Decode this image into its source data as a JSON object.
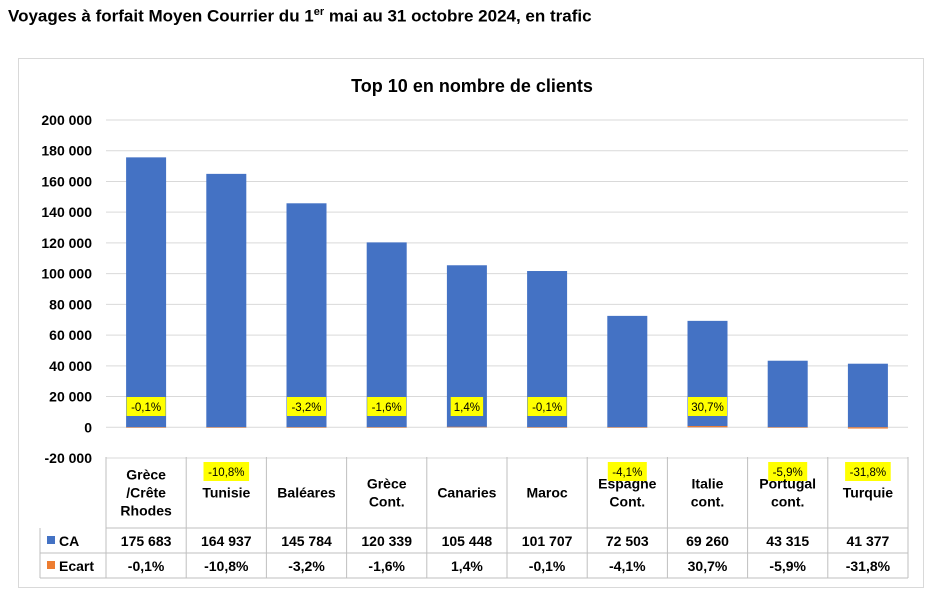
{
  "page": {
    "title_main": "Voyages à forfait Moyen Courrier du 1",
    "title_sup": "er",
    "title_rest": " mai au 31 octobre 2024, en trafic"
  },
  "colors": {
    "ca": "#4472C4",
    "ecart": "#ED7D31",
    "highlight": "#FFFF00",
    "grid": "#D9D9D9"
  },
  "chart_data": {
    "type": "bar",
    "title": "Top 10 en nombre de clients",
    "categories": [
      [
        "Grèce",
        "/Crête",
        "Rhodes"
      ],
      [
        "Tunisie"
      ],
      [
        "Baléares"
      ],
      [
        "Grèce",
        "Cont."
      ],
      [
        "Canaries"
      ],
      [
        "Maroc"
      ],
      [
        "Espagne",
        "Cont."
      ],
      [
        "Italie",
        "cont."
      ],
      [
        "Portugal",
        "cont."
      ],
      [
        "Turquie"
      ]
    ],
    "series": [
      {
        "name": "CA",
        "values": [
          175683,
          164937,
          145784,
          120339,
          105448,
          101707,
          72503,
          69260,
          43315,
          41377
        ],
        "labels": [
          "175 683",
          "164 937",
          "145 784",
          "120 339",
          "105 448",
          "101 707",
          "72 503",
          "69 260",
          "43 315",
          "41 377"
        ]
      },
      {
        "name": "Ecart",
        "values": [
          -0.1,
          -10.8,
          -3.2,
          -1.6,
          1.4,
          -0.1,
          -4.1,
          30.7,
          -5.9,
          -31.8
        ],
        "labels": [
          "-0,1%",
          "-10,8%",
          "-3,2%",
          "-1,6%",
          "1,4%",
          "-0,1%",
          "-4,1%",
          "30,7%",
          "-5,9%",
          "-31,8%"
        ]
      }
    ],
    "yticks": [
      "200 000",
      "180 000",
      "160 000",
      "140 000",
      "120 000",
      "100 000",
      "80 000",
      "60 000",
      "40 000",
      "20 000",
      "0",
      "-20 000"
    ],
    "ylim": [
      -20000,
      200000
    ],
    "grid": true,
    "legend": "data-table"
  }
}
